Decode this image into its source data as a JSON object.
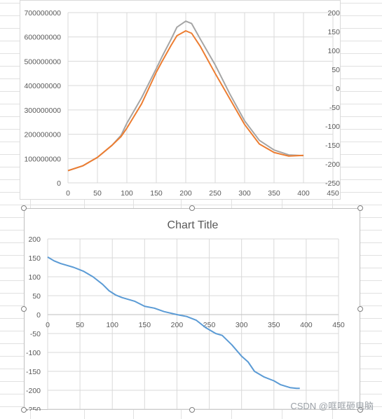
{
  "watermark": "CSDN @哐哐砸电脑",
  "colors": {
    "gridline": "#d9d9d9",
    "sheet_gridline": "#e1e1e1",
    "series_gray": "#a5a5a5",
    "series_orange": "#ed7d31",
    "series_blue": "#5b9bd5"
  },
  "chart_data": [
    {
      "type": "line",
      "title": "",
      "grid": true,
      "xlim": [
        0,
        450
      ],
      "x_ticks": [
        "0",
        "50",
        "100",
        "150",
        "200",
        "250",
        "300",
        "350",
        "400",
        "450"
      ],
      "ylim_primary": [
        0,
        700000000
      ],
      "y_ticks_primary": [
        "0",
        "100000000",
        "200000000",
        "300000000",
        "400000000",
        "500000000",
        "600000000",
        "700000000"
      ],
      "ylim_secondary": [
        -250,
        200
      ],
      "y_ticks_secondary": [
        "200",
        "150",
        "100",
        "50",
        "0",
        "-50",
        "-100",
        "-150",
        "-200",
        "-250"
      ],
      "series": [
        {
          "color": "#a5a5a5",
          "x": [
            0,
            25,
            50,
            75,
            90,
            100,
            125,
            150,
            160,
            175,
            185,
            200,
            210,
            225,
            250,
            275,
            300,
            325,
            350,
            375,
            400
          ],
          "y": [
            50000000,
            70000000,
            105000000,
            155000000,
            195000000,
            245000000,
            350000000,
            470000000,
            520000000,
            590000000,
            640000000,
            665000000,
            655000000,
            590000000,
            485000000,
            365000000,
            255000000,
            175000000,
            135000000,
            115000000,
            112000000
          ]
        },
        {
          "color": "#ed7d31",
          "x": [
            0,
            25,
            50,
            75,
            90,
            100,
            125,
            150,
            160,
            175,
            185,
            200,
            210,
            225,
            250,
            275,
            300,
            325,
            350,
            375,
            400
          ],
          "y": [
            50000000,
            70000000,
            105000000,
            155000000,
            190000000,
            225000000,
            325000000,
            455000000,
            500000000,
            565000000,
            605000000,
            625000000,
            615000000,
            560000000,
            450000000,
            345000000,
            240000000,
            160000000,
            125000000,
            110000000,
            113000000
          ]
        }
      ]
    },
    {
      "type": "line",
      "title": "Chart Title",
      "grid": true,
      "xlim": [
        0,
        450
      ],
      "x_ticks": [
        "0",
        "50",
        "100",
        "150",
        "200",
        "250",
        "300",
        "350",
        "400",
        "450"
      ],
      "ylim": [
        -250,
        200
      ],
      "y_ticks": [
        "200",
        "150",
        "100",
        "50",
        "0",
        "-50",
        "-100",
        "-150",
        "-200",
        "-250"
      ],
      "series": [
        {
          "color": "#5b9bd5",
          "x": [
            0,
            10,
            20,
            40,
            55,
            70,
            85,
            95,
            105,
            115,
            135,
            150,
            165,
            180,
            200,
            215,
            230,
            245,
            260,
            270,
            285,
            300,
            310,
            320,
            335,
            350,
            360,
            375,
            385,
            390
          ],
          "y": [
            152,
            142,
            135,
            125,
            115,
            100,
            80,
            63,
            52,
            45,
            35,
            22,
            17,
            8,
            0,
            -5,
            -15,
            -35,
            -50,
            -55,
            -80,
            -110,
            -125,
            -150,
            -165,
            -175,
            -185,
            -193,
            -195,
            -195
          ]
        }
      ]
    }
  ]
}
